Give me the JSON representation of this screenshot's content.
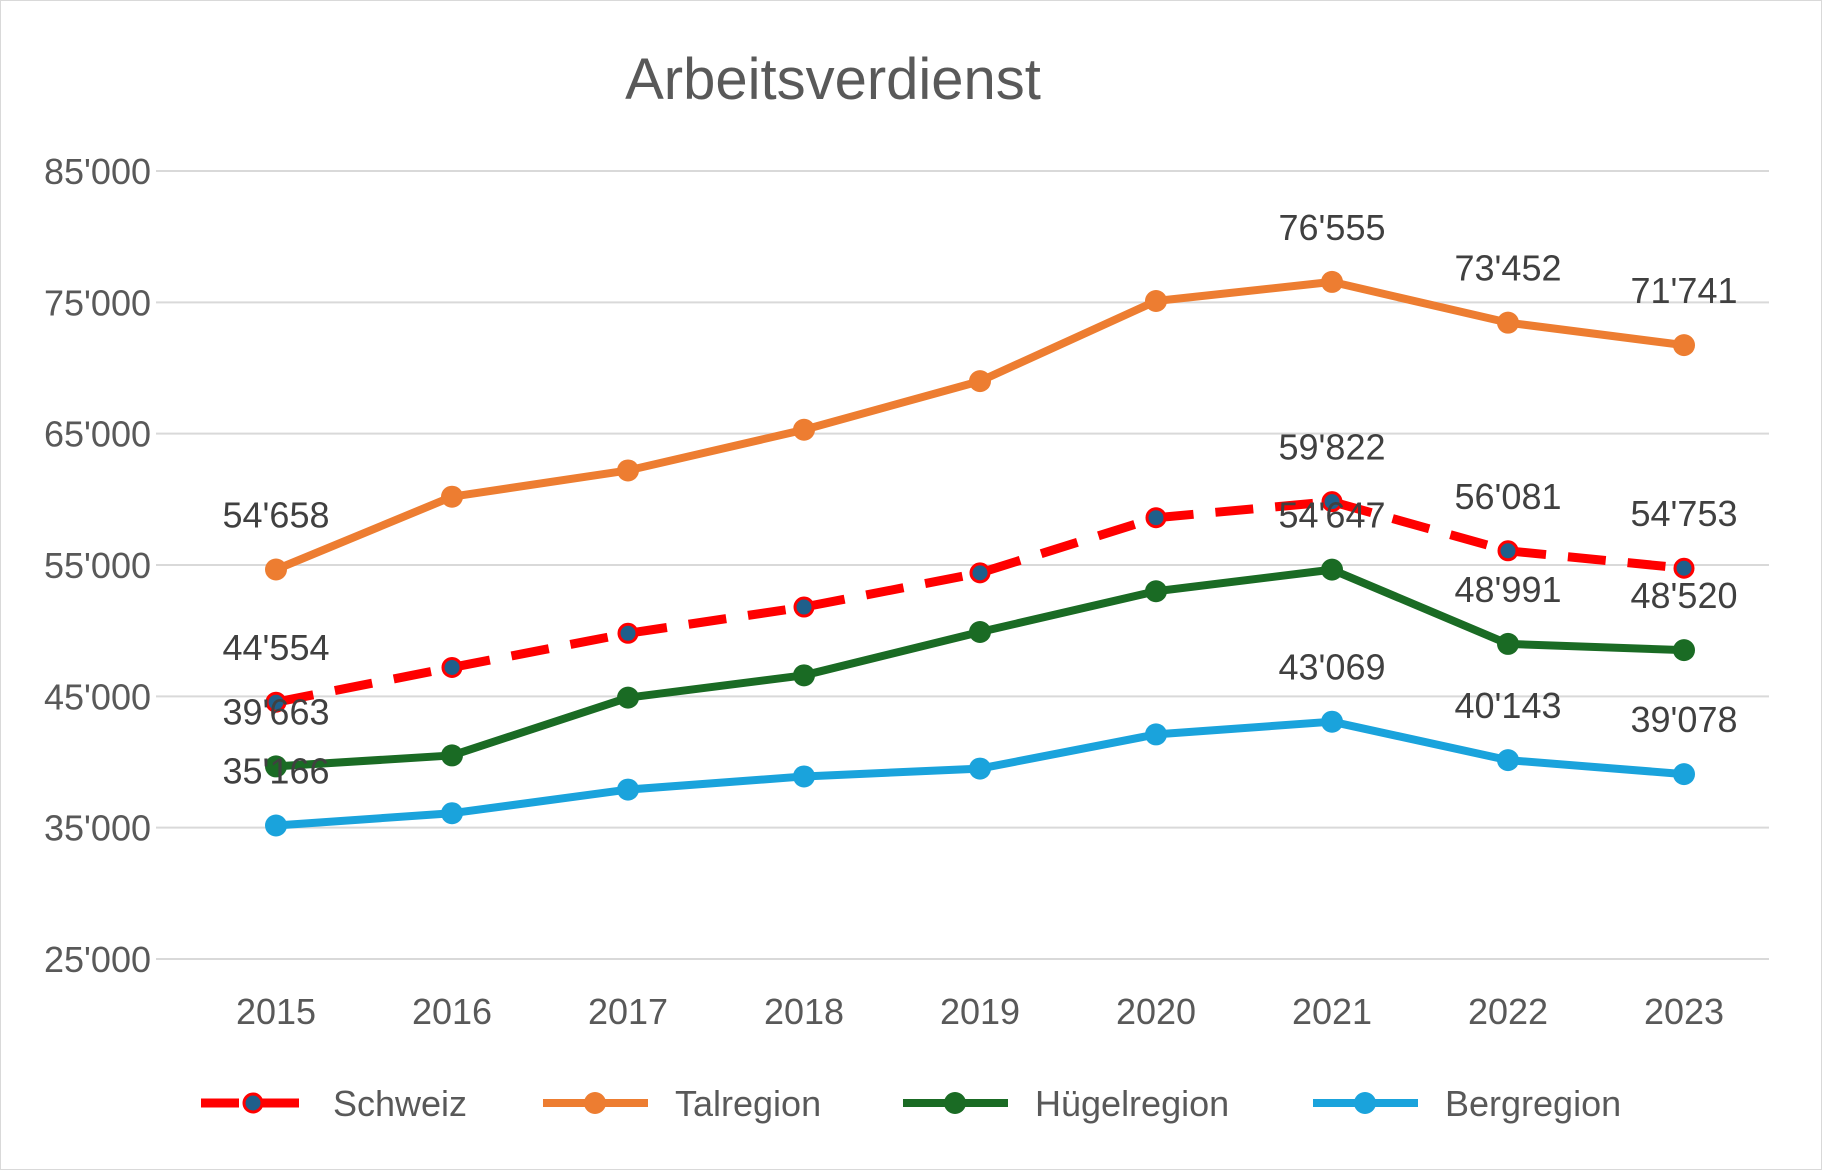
{
  "chart_data": {
    "type": "line",
    "title": "Arbeitsverdienst",
    "xlabel": "",
    "ylabel": "",
    "categories": [
      "2015",
      "2016",
      "2017",
      "2018",
      "2019",
      "2020",
      "2021",
      "2022",
      "2023"
    ],
    "ylim": [
      25000,
      85000
    ],
    "yticks": [
      25000,
      35000,
      45000,
      55000,
      65000,
      75000,
      85000
    ],
    "ytick_labels": [
      "25'000",
      "35'000",
      "45'000",
      "55'000",
      "65'000",
      "75'000",
      "85'000"
    ],
    "grid": true,
    "legend_position": "bottom",
    "series": [
      {
        "name": "Schweiz",
        "color": "#ff0000",
        "marker_color": "#1f5f8b",
        "dashed": true,
        "values": [
          44554,
          47200,
          49800,
          51800,
          54400,
          58600,
          59822,
          56081,
          54753
        ],
        "data_labels": [
          "44'554",
          "",
          "",
          "",
          "",
          "",
          "59'822",
          "56'081",
          "54'753"
        ]
      },
      {
        "name": "Talregion",
        "color": "#ed7d31",
        "marker_color": "#ed7d31",
        "dashed": false,
        "values": [
          54658,
          60200,
          62200,
          65300,
          69000,
          75100,
          76555,
          73452,
          71741
        ],
        "data_labels": [
          "54'658",
          "",
          "",
          "",
          "",
          "",
          "76'555",
          "73'452",
          "71'741"
        ]
      },
      {
        "name": "Hügelregion",
        "color": "#1a6b24",
        "marker_color": "#1a6b24",
        "dashed": false,
        "values": [
          39663,
          40500,
          44900,
          46600,
          49900,
          53000,
          54647,
          48991,
          48520
        ],
        "data_labels": [
          "39'663",
          "",
          "",
          "",
          "",
          "",
          "54'647",
          "48'991",
          "48'520"
        ]
      },
      {
        "name": "Bergregion",
        "color": "#1aa3dc",
        "marker_color": "#1aa3dc",
        "dashed": false,
        "values": [
          35166,
          36100,
          37900,
          38900,
          39500,
          42100,
          43069,
          40143,
          39078
        ],
        "data_labels": [
          "35'166",
          "",
          "",
          "",
          "",
          "",
          "43'069",
          "40'143",
          "39'078"
        ]
      }
    ]
  }
}
